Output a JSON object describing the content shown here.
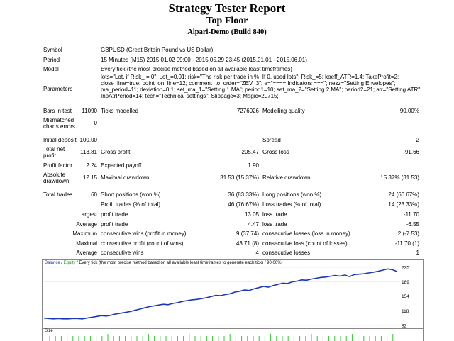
{
  "header": {
    "title": "Strategy Tester Report",
    "subtitle": "Top Floor",
    "build": "Alpari-Demo (Build 840)"
  },
  "general": {
    "symbol_label": "Symbol",
    "symbol_value": "GBPUSD (Great Britain Pound vs US Dollar)",
    "period_label": "Period",
    "period_value": "15 Minutes (M15) 2015.01.02 09:00 - 2015.05.29 23:45 (2015.01.01 - 2015.06.01)",
    "model_label": "Model",
    "model_value": "Every tick (the most precise method based on all available least timeframes)",
    "params_label": "Parameters",
    "params_lines": [
      "lots=\"Lot. if Risk_ = 0\"; Lot_=0.01; risk=\"The risk per trade in %. If 0. used lots\"; Risk_=5; koeff_ATR=1.4; TakeProfit=2;",
      "close_line=true; point_on_line=12; comment_to_order=\"ZEV_3\"; e=\"==== Indicators ===\"; nezz=\"Setting Envelopes\";",
      "ma_period=11; deviation=0.1; set_ma_1=\"Setting 1 MA\"; period1=10; set_ma_2=\"Setting 2 MA\"; period2=21; atr=\"Setting ATR\";",
      "InpAtrPeriod=14; tech=\"Technical settings\"; Slippage=3; Magic=20715;"
    ]
  },
  "stats": {
    "bars_label": "Bars in test",
    "bars_value": "11090",
    "ticks_label": "Ticks modelled",
    "ticks_value": "7276026",
    "quality_label": "Modelling quality",
    "quality_value": "90.00%",
    "mismatch_label_1": "Mismatched",
    "mismatch_label_2": "charts errors",
    "mismatch_value": "0",
    "deposit_label": "Initial deposit",
    "deposit_value": "100.00",
    "spread_label": "Spread",
    "spread_value": "2",
    "netprofit_label_1": "Total net",
    "netprofit_label_2": "profit",
    "netprofit_value": "113.81",
    "grossprofit_label": "Gross profit",
    "grossprofit_value": "205.47",
    "grossloss_label": "Gross loss",
    "grossloss_value": "-91.66",
    "pf_label": "Profit factor",
    "pf_value": "2.24",
    "ep_label": "Expected payoff",
    "ep_value": "1.90",
    "absdd_label_1": "Absolute",
    "absdd_label_2": "drawdown",
    "absdd_value": "12.15",
    "maxdd_label": "Maximal drawdown",
    "maxdd_value": "31.53 (15.37%)",
    "reldd_label": "Relative drawdown",
    "reldd_value": "15.37% (31.53)",
    "trades_label": "Total trades",
    "trades_value": "60",
    "short_label": "Short positions (won %)",
    "short_value": "36 (83.33%)",
    "long_label": "Long positions (won %)",
    "long_value": "24 (66.67%)",
    "ptrades_label": "Profit trades (% of total)",
    "ptrades_value": "46 (76.67%)",
    "ltrades_label": "Loss trades (% of total)",
    "ltrades_value": "14 (23.33%)",
    "largest": "Largest",
    "average": "Average",
    "maximum": "Maximum",
    "maximal": "Maximal",
    "average2": "Average",
    "lpt_label": "profit trade",
    "lpt_value": "13.05",
    "llt_label": "loss trade",
    "llt_value": "-11.70",
    "apt_label": "profit trade",
    "apt_value": "4.47",
    "alt_label": "loss trade",
    "alt_value": "-6.55",
    "mcw_label": "consecutive wins (profit in money)",
    "mcw_value": "9 (37.74)",
    "mcl_label": "consecutive losses (loss in money)",
    "mcl_value": "2 (-7.53)",
    "mcp_label": "consecutive profit (count of wins)",
    "mcp_value": "43.71 (8)",
    "mclc_label": "consecutive loss (count of losses)",
    "mclc_value": "-11.70 (1)",
    "acw_label": "consecutive wins",
    "acw_value": "4",
    "acl_label": "consecutive losses",
    "acl_value": "1"
  },
  "graph": {
    "legend_balance": "Balance",
    "legend_sep": " / ",
    "legend_equity": "Equity",
    "legend_rest": " / Every tick (the most precise method based on all available least timeframes to generate each tick) / 90.00%",
    "size_label": "Size",
    "y_ticks": [
      "225",
      "189",
      "154",
      "118",
      "82"
    ],
    "balance_color": "#1a38b8",
    "size_bar_color": "#39c239"
  },
  "chart_data": {
    "type": "line",
    "ylim": [
      82,
      225
    ],
    "series": [
      {
        "name": "Balance",
        "values": [
          100,
          99,
          98,
          99,
          98,
          98,
          99,
          99,
          98,
          100,
          102,
          104,
          106,
          105,
          107,
          110,
          112,
          114,
          116,
          119,
          122,
          125,
          128,
          130,
          132,
          134,
          133,
          136,
          138,
          141,
          143,
          145,
          146,
          148,
          150,
          153,
          156,
          155,
          158,
          160,
          164,
          166,
          169,
          168,
          172,
          175,
          178,
          176,
          180,
          183,
          186,
          185,
          189,
          191,
          194,
          193,
          196,
          198,
          200,
          201,
          203,
          205,
          203,
          206,
          202,
          207,
          208,
          209,
          211,
          213,
          215,
          218,
          221,
          219,
          214
        ]
      }
    ]
  }
}
